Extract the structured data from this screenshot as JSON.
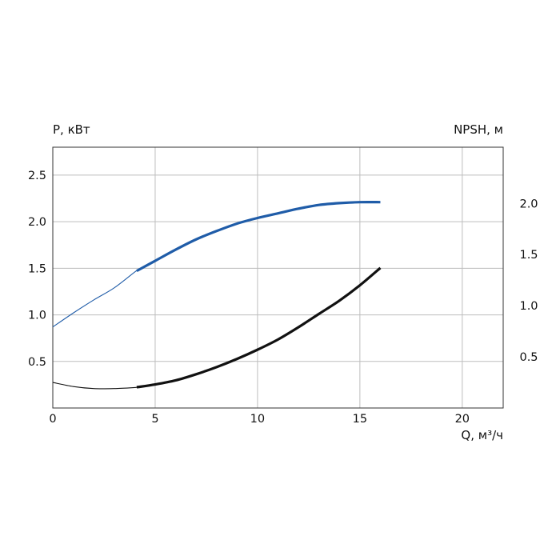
{
  "chart_data": {
    "type": "line",
    "title": "",
    "left_axis_label": "P, кВт",
    "right_axis_label": "NPSH, м",
    "x_axis_label": "Q, м³/ч",
    "xlim": [
      0,
      22
    ],
    "ylim_left": [
      0,
      2.8
    ],
    "ylim_right": [
      0,
      2.55
    ],
    "x_ticks": [
      "0",
      "5",
      "10",
      "15",
      "20"
    ],
    "left_ticks": [
      "0.5",
      "1.0",
      "1.5",
      "2.0",
      "2.5"
    ],
    "right_ticks": [
      "0.5",
      "1.0",
      "1.5",
      "2.0"
    ],
    "grid": true,
    "series": [
      {
        "axis": "left",
        "color": "#1f5ca8",
        "thin_until_x": 4.1,
        "x": [
          0,
          1,
          2,
          3,
          4,
          5,
          6,
          7,
          8,
          9,
          10,
          11,
          12,
          13,
          14,
          15,
          16
        ],
        "y": [
          0.87,
          1.02,
          1.16,
          1.29,
          1.46,
          1.58,
          1.7,
          1.81,
          1.9,
          1.98,
          2.04,
          2.09,
          2.14,
          2.18,
          2.2,
          2.21,
          2.21
        ]
      },
      {
        "axis": "right",
        "color": "#111111",
        "thin_until_x": 4.1,
        "x": [
          0,
          1,
          2,
          3,
          4,
          5,
          6,
          7,
          8,
          9,
          10,
          11,
          12,
          13,
          14,
          15,
          16
        ],
        "y": [
          0.25,
          0.21,
          0.19,
          0.19,
          0.2,
          0.23,
          0.27,
          0.33,
          0.4,
          0.48,
          0.57,
          0.67,
          0.79,
          0.92,
          1.05,
          1.2,
          1.37
        ]
      }
    ]
  }
}
